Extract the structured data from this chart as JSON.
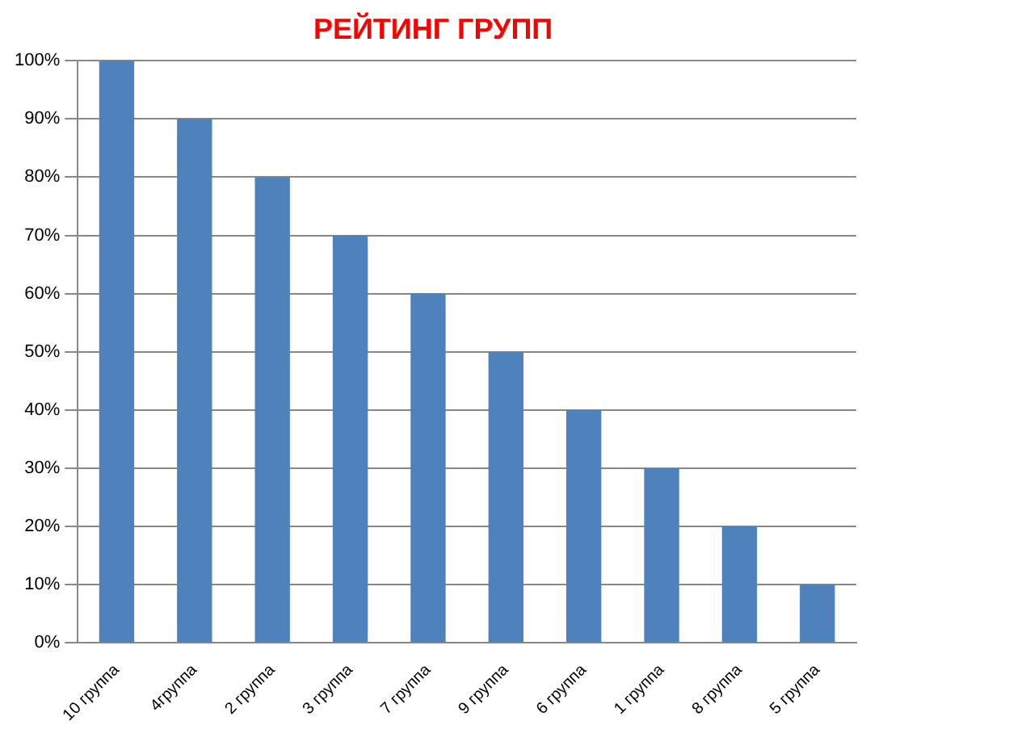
{
  "chart_data": {
    "type": "bar",
    "title": "РЕЙТИНГ ГРУПП",
    "categories": [
      "10 группа",
      "4группа",
      "2 группа",
      "3 группа",
      "7 группа",
      "9 группа",
      "6 группа",
      "1 группа",
      "8 группа",
      "5 группа"
    ],
    "values": [
      100,
      90,
      80,
      70,
      60,
      50,
      40,
      30,
      20,
      10
    ],
    "color": "#4f81bd",
    "ylim": [
      0,
      100
    ],
    "yticks": [
      {
        "value": 0,
        "label": "0%"
      },
      {
        "value": 10,
        "label": "10%"
      },
      {
        "value": 20,
        "label": "20%"
      },
      {
        "value": 30,
        "label": "30%"
      },
      {
        "value": 40,
        "label": "40%"
      },
      {
        "value": 50,
        "label": "50%"
      },
      {
        "value": 60,
        "label": "60%"
      },
      {
        "value": 70,
        "label": "70%"
      },
      {
        "value": 80,
        "label": "80%"
      },
      {
        "value": 90,
        "label": "90%"
      },
      {
        "value": 100,
        "label": "100%"
      }
    ],
    "grid": "y",
    "legend": false
  }
}
